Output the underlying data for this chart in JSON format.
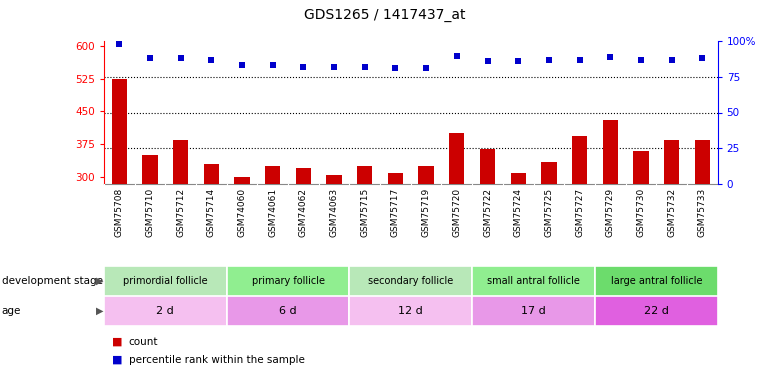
{
  "title": "GDS1265 / 1417437_at",
  "samples": [
    "GSM75708",
    "GSM75710",
    "GSM75712",
    "GSM75714",
    "GSM74060",
    "GSM74061",
    "GSM74062",
    "GSM74063",
    "GSM75715",
    "GSM75717",
    "GSM75719",
    "GSM75720",
    "GSM75722",
    "GSM75724",
    "GSM75725",
    "GSM75727",
    "GSM75729",
    "GSM75730",
    "GSM75732",
    "GSM75733"
  ],
  "counts": [
    525,
    350,
    385,
    330,
    300,
    325,
    320,
    305,
    325,
    310,
    325,
    400,
    365,
    310,
    335,
    395,
    430,
    360,
    385,
    385
  ],
  "percentile": [
    98,
    88,
    88,
    87,
    83,
    83,
    82,
    82,
    82,
    81,
    81,
    90,
    86,
    86,
    87,
    87,
    89,
    87,
    87,
    88
  ],
  "ylim_left": [
    285,
    610
  ],
  "ylim_right": [
    0,
    100
  ],
  "yticks_left": [
    300,
    375,
    450,
    525,
    600
  ],
  "yticks_right": [
    0,
    25,
    50,
    75,
    100
  ],
  "hlines_pct": [
    25,
    50,
    75
  ],
  "groups": [
    {
      "label": "primordial follicle",
      "age": "2 d",
      "start": 0,
      "end": 4
    },
    {
      "label": "primary follicle",
      "age": "6 d",
      "start": 4,
      "end": 8
    },
    {
      "label": "secondary follicle",
      "age": "12 d",
      "start": 8,
      "end": 12
    },
    {
      "label": "small antral follicle",
      "age": "17 d",
      "start": 12,
      "end": 16
    },
    {
      "label": "large antral follicle",
      "age": "22 d",
      "start": 16,
      "end": 20
    }
  ],
  "group_colors": [
    "#b8e8b8",
    "#90ee90",
    "#b8e8b8",
    "#90ee90",
    "#6cdc6c"
  ],
  "age_colors": [
    "#f5c0f0",
    "#e898e8",
    "#f5c0f0",
    "#e898e8",
    "#e060e0"
  ],
  "bar_color": "#cc0000",
  "dot_color": "#0000cc",
  "xlab_bg": "#c8c8c8",
  "bar_width": 0.5
}
